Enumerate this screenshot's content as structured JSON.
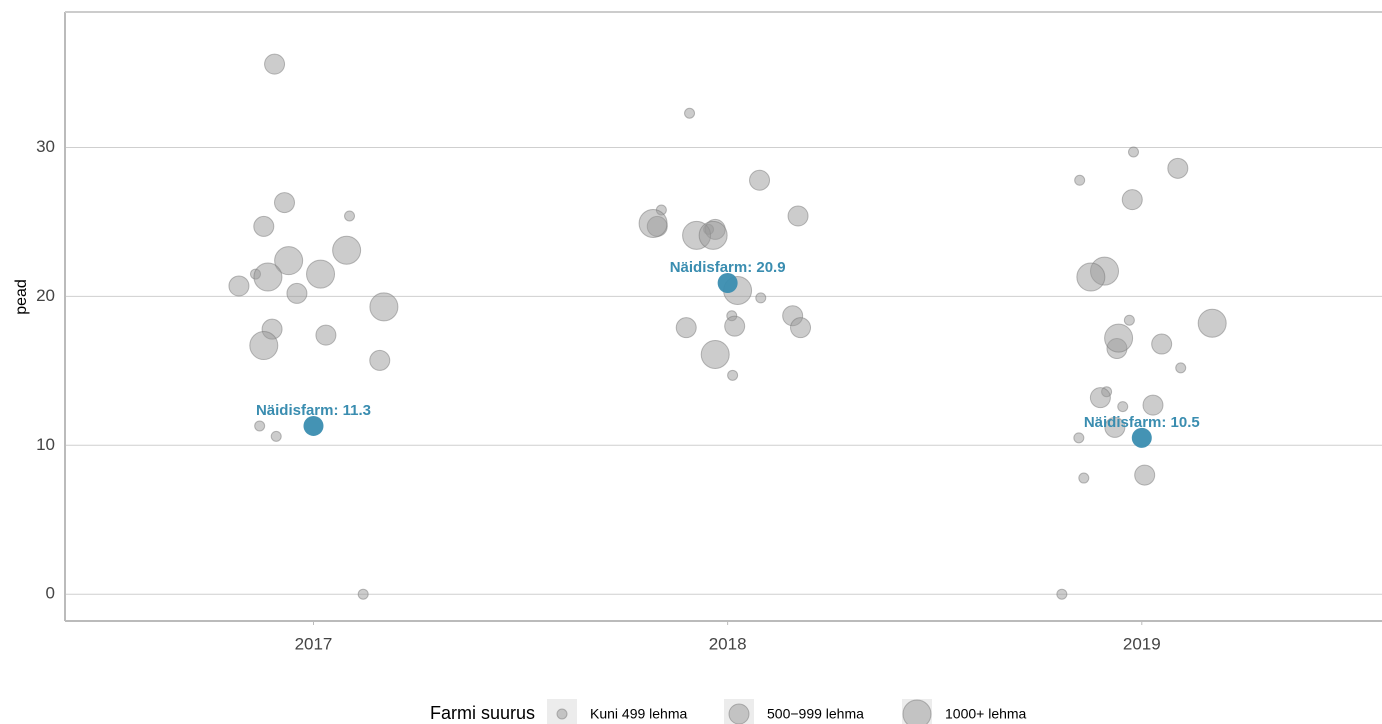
{
  "chart_data": {
    "type": "scatter",
    "y_label": "pead",
    "xlim": [
      2016.4,
      2019.58
    ],
    "xticks": [
      2017,
      2018,
      2019
    ],
    "ylim": [
      -1.8,
      39.1
    ],
    "yticks": [
      0,
      10,
      20,
      30
    ],
    "grid": true,
    "legend_title": "Farmi suurus",
    "legend": "bottom",
    "series": [
      {
        "name": "Kuni 499 lehma",
        "color": "#9a9a9a",
        "x": [
          2017.087,
          2016.86,
          2016.87,
          2016.91,
          2017.12,
          2017.908,
          2017.84,
          2017.954,
          2018.08,
          2018.01,
          2018.012,
          2018.98,
          2018.85,
          2018.97,
          2019.094,
          2018.915,
          2018.954,
          2018.848,
          2018.86,
          2018.807
        ],
        "values": [
          25.4,
          21.5,
          11.3,
          10.6,
          0.0,
          32.3,
          25.8,
          24.5,
          19.9,
          18.7,
          14.7,
          29.7,
          27.8,
          18.4,
          15.2,
          13.6,
          12.6,
          10.5,
          7.8,
          0.0
        ]
      },
      {
        "name": "500−999 lehma",
        "color": "#9a9a9a",
        "x": [
          2016.906,
          2016.93,
          2016.88,
          2016.82,
          2016.96,
          2016.9,
          2017.03,
          2017.16,
          2018.077,
          2018.17,
          2017.83,
          2017.97,
          2018.157,
          2017.9,
          2018.017,
          2018.176,
          2019.087,
          2018.977,
          2019.048,
          2018.94,
          2018.9,
          2019.027,
          2018.935,
          2019.007
        ],
        "values": [
          35.6,
          26.3,
          24.7,
          20.7,
          20.2,
          17.8,
          17.4,
          15.7,
          27.8,
          25.4,
          24.7,
          24.5,
          18.7,
          17.9,
          18.0,
          17.9,
          28.6,
          26.5,
          16.8,
          16.5,
          13.2,
          12.7,
          11.2,
          8.0
        ]
      },
      {
        "name": "1000+ lehma",
        "color": "#9a9a9a",
        "x": [
          2016.94,
          2017.08,
          2016.89,
          2017.017,
          2017.17,
          2016.88,
          2017.82,
          2017.925,
          2017.965,
          2018.024,
          2017.97,
          2018.91,
          2018.877,
          2019.17,
          2018.944
        ],
        "values": [
          22.4,
          23.1,
          21.3,
          21.5,
          19.3,
          16.7,
          24.9,
          24.1,
          24.1,
          20.4,
          16.1,
          21.7,
          21.3,
          18.2,
          17.2
        ]
      }
    ],
    "highlight": {
      "color": "#3a8db0",
      "x": [
        2017,
        2018,
        2019
      ],
      "values": [
        11.3,
        20.9,
        10.5
      ],
      "value_labels": [
        "Näidisfarm: 11.3",
        "Näidisfarm: 20.9",
        "Näidisfarm: 10.5"
      ]
    }
  }
}
